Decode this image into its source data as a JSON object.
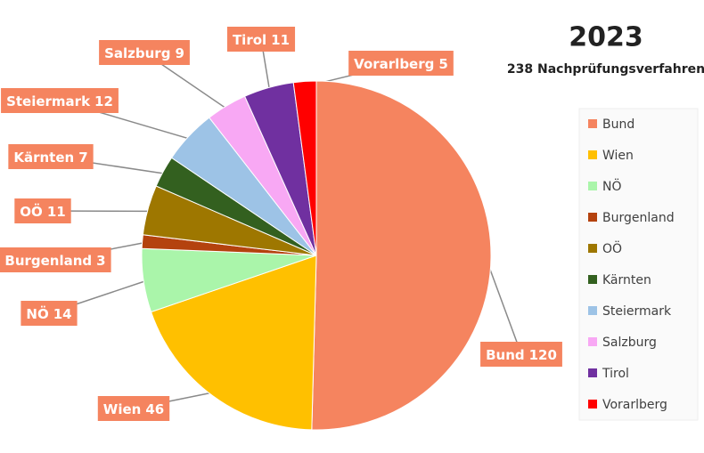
{
  "chart_data": {
    "type": "pie",
    "title": "2023",
    "subtitle": "238 Nachprüfungsverfahren",
    "categories": [
      "Bund",
      "Wien",
      "NÖ",
      "Burgenland",
      "OÖ",
      "Kärnten",
      "Steiermark",
      "Salzburg",
      "Tirol",
      "Vorarlberg"
    ],
    "values": [
      120,
      46,
      14,
      3,
      11,
      7,
      12,
      9,
      11,
      5
    ],
    "colors": [
      "#f5845f",
      "#ffc000",
      "#aaf5aa",
      "#b4420e",
      "#9e7700",
      "#33601f",
      "#9dc3e6",
      "#f8a8f4",
      "#7030a0",
      "#ff0000"
    ],
    "legend": "right"
  }
}
